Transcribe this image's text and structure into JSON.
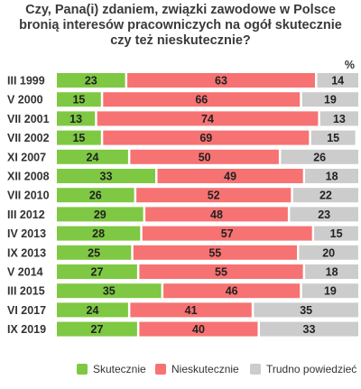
{
  "chart_data": {
    "type": "bar",
    "orientation": "horizontal",
    "stacked": true,
    "title_lines": [
      "Czy, Pana(i) zdaniem, związki zawodowe w Polsce",
      "bronią interesów pracowniczych na ogół skutecznie",
      "czy też nieskutecznie?"
    ],
    "unit_label": "%",
    "categories": [
      "III 1999",
      "V 2000",
      "VII 2001",
      "VII 2002",
      "XI 2007",
      "XII 2008",
      "VII 2010",
      "III 2012",
      "IV 2013",
      "IX 2013",
      "V 2014",
      "III 2015",
      "VI 2017",
      "IX 2019"
    ],
    "series": [
      {
        "name": "Skutecznie",
        "color": "#7ec843",
        "values": [
          23,
          15,
          13,
          15,
          24,
          33,
          26,
          29,
          28,
          25,
          27,
          35,
          24,
          27
        ]
      },
      {
        "name": "Nieskutecznie",
        "color": "#f77272",
        "values": [
          63,
          66,
          74,
          69,
          50,
          49,
          52,
          48,
          57,
          55,
          55,
          46,
          41,
          40
        ]
      },
      {
        "name": "Trudno powiedzieć",
        "color": "#cccccc",
        "values": [
          14,
          19,
          13,
          15,
          26,
          18,
          22,
          23,
          15,
          20,
          18,
          19,
          35,
          33
        ]
      }
    ],
    "xlim": [
      0,
      100
    ],
    "legend_position": "bottom-right",
    "grid": false
  }
}
